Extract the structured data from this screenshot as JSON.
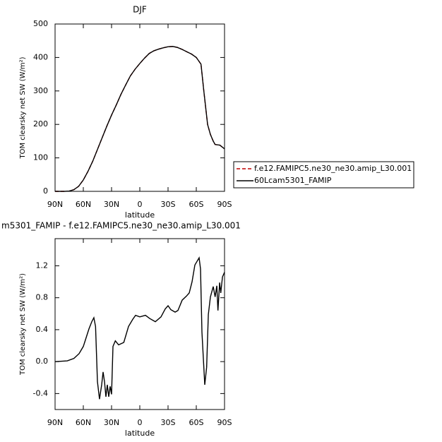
{
  "chart_data": [
    {
      "type": "line",
      "title": "DJF",
      "x_label": "latitude",
      "y_label": "TOM clearsky net SW (W/m²)",
      "x": [
        90,
        85,
        80,
        75,
        70,
        65,
        60,
        55,
        50,
        45,
        40,
        35,
        30,
        25,
        20,
        15,
        10,
        5,
        0,
        -5,
        -10,
        -15,
        -20,
        -25,
        -30,
        -35,
        -40,
        -45,
        -50,
        -55,
        -60,
        -65,
        -68,
        -70,
        -72,
        -75,
        -78,
        -80,
        -85,
        -90
      ],
      "series": [
        {
          "name": "f.e12.FAMIPC5.ne30_ne30.amip_L30.001",
          "color": "#c00000",
          "dash": "dashed",
          "values": [
            0,
            0,
            0,
            1,
            5,
            15,
            34,
            60,
            90,
            125,
            160,
            195,
            228,
            258,
            290,
            318,
            345,
            365,
            382,
            398,
            412,
            420,
            425,
            429,
            432,
            433,
            430,
            424,
            417,
            410,
            400,
            380,
            300,
            250,
            200,
            170,
            150,
            140,
            138,
            127
          ]
        },
        {
          "name": "60Lcam5301_FAMIP",
          "color": "#000000",
          "dash": "solid",
          "values": [
            0,
            0,
            0,
            1,
            5,
            15,
            34,
            60,
            90,
            125,
            160,
            195,
            228,
            258,
            290,
            318,
            345,
            365,
            382,
            398,
            412,
            420,
            425,
            429,
            432,
            433,
            430,
            424,
            417,
            410,
            400,
            380,
            300,
            250,
            200,
            170,
            150,
            140,
            138,
            127
          ]
        }
      ],
      "xlim": [
        90,
        -90
      ],
      "xticks": [
        {
          "value": 90,
          "label": "90N"
        },
        {
          "value": 60,
          "label": "60N"
        },
        {
          "value": 30,
          "label": "30N"
        },
        0,
        {
          "value": -30,
          "label": "30S"
        },
        {
          "value": -60,
          "label": "60S"
        },
        {
          "value": -90,
          "label": "90S"
        }
      ],
      "ylim": [
        0,
        500
      ],
      "yticks": [
        0,
        100,
        200,
        300,
        400,
        500
      ],
      "legend": "right"
    },
    {
      "type": "line",
      "title": "m5301_FAMIP - f.e12.FAMIPC5.ne30_ne30.amip_L30.001",
      "x_label": "latitude",
      "y_label": "TOM clearsky net SW (W/m²)",
      "x": [
        90,
        77,
        70,
        64.5,
        60,
        57,
        54,
        51,
        48.8,
        47,
        45,
        42.8,
        40.5,
        39,
        37.5,
        36,
        34.5,
        33,
        31.5,
        30,
        28.5,
        26,
        22.5,
        17,
        12,
        7.5,
        4.5,
        0,
        -6,
        -10.5,
        -16.5,
        -22.5,
        -27,
        -30,
        -33,
        -37.5,
        -40.5,
        -45,
        -49.5,
        -52.5,
        -55.5,
        -58.5,
        -63,
        -64.5,
        -66,
        -69,
        -71,
        -72.8,
        -75,
        -78,
        -80,
        -81.8,
        -83,
        -84.8,
        -86,
        -87.8,
        -90
      ],
      "values": [
        0.0,
        0.01,
        0.04,
        0.1,
        0.19,
        0.3,
        0.41,
        0.5,
        0.55,
        0.44,
        -0.25,
        -0.47,
        -0.29,
        -0.13,
        -0.25,
        -0.44,
        -0.29,
        -0.44,
        -0.31,
        -0.41,
        0.19,
        0.26,
        0.21,
        0.24,
        0.44,
        0.53,
        0.58,
        0.56,
        0.58,
        0.54,
        0.5,
        0.56,
        0.66,
        0.7,
        0.65,
        0.62,
        0.64,
        0.77,
        0.82,
        0.86,
        1.0,
        1.21,
        1.3,
        1.16,
        0.37,
        -0.29,
        -0.07,
        0.59,
        0.81,
        0.94,
        0.81,
        0.95,
        0.64,
        0.99,
        0.86,
        1.06,
        1.12
      ],
      "color": "#000000",
      "xlim": [
        90,
        -90
      ],
      "xticks": [
        {
          "value": 90,
          "label": "90N"
        },
        {
          "value": 60,
          "label": "60N"
        },
        {
          "value": 30,
          "label": "30N"
        },
        0,
        {
          "value": -30,
          "label": "30S"
        },
        {
          "value": -60,
          "label": "60S"
        },
        {
          "value": -90,
          "label": "90S"
        }
      ],
      "ylim": [
        -0.6,
        1.54
      ],
      "yticks": [
        -0.4,
        {
          "value": 0,
          "label": "0.0"
        },
        0.4,
        0.8,
        1.2
      ]
    }
  ]
}
